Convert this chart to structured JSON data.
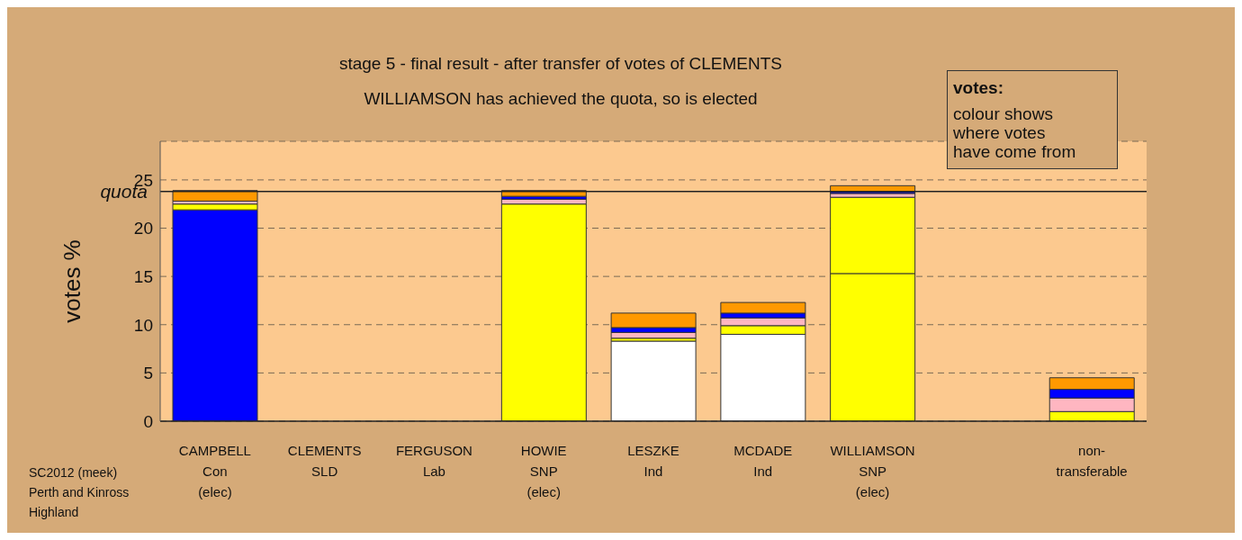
{
  "chart_data": {
    "type": "bar",
    "stacked": true,
    "title": "stage 5 - final result - after transfer of votes of CLEMENTS",
    "subtitle": "WILLIAMSON has achieved the quota, so is elected",
    "ylabel": "votes %",
    "categories": [
      "CAMPBELL\nCon\n(elec)",
      "CLEMENTS\nSLD",
      "FERGUSON\nLab",
      "HOWIE\nSNP\n(elec)",
      "LESZKE\nInd",
      "MCDADE\nInd",
      "WILLIAMSON\nSNP\n(elec)",
      null,
      "non-\ntransferable"
    ],
    "series": [
      {
        "colors": [
          "#0000ff",
          "#ffffff",
          "#ffffff",
          "#ffff00",
          "#ffffff",
          "#ffffff",
          "#ffff00",
          null,
          null
        ],
        "values": [
          21.9,
          0,
          0,
          22.5,
          8.3,
          9.0,
          15.3,
          null,
          null
        ]
      },
      {
        "color": "#ffff00",
        "values": [
          0.6,
          null,
          null,
          null,
          0.3,
          0.9,
          7.9,
          null,
          1.0
        ]
      },
      {
        "color": "#ffb6c1",
        "values": [
          0.3,
          null,
          null,
          0.5,
          0.6,
          0.8,
          0.4,
          null,
          1.4
        ]
      },
      {
        "color": "#0000ff",
        "values": [
          null,
          null,
          null,
          0.3,
          0.5,
          0.5,
          0.2,
          null,
          0.9
        ]
      },
      {
        "color": "#ff9900",
        "values": [
          1.1,
          null,
          null,
          0.6,
          1.5,
          1.1,
          0.6,
          null,
          1.2
        ]
      }
    ],
    "ylim": [
      0,
      29
    ],
    "yticks": [
      0,
      5,
      10,
      15,
      20,
      25
    ],
    "grid": "y",
    "ref_lines": [
      {
        "axis": "y",
        "value": 23.8,
        "label": "quota"
      }
    ],
    "annotations": [
      "votes:",
      "colour shows\nwhere votes\nhave come from",
      "SC2012 (meek)\nPerth and Kinross\nHighland"
    ]
  }
}
